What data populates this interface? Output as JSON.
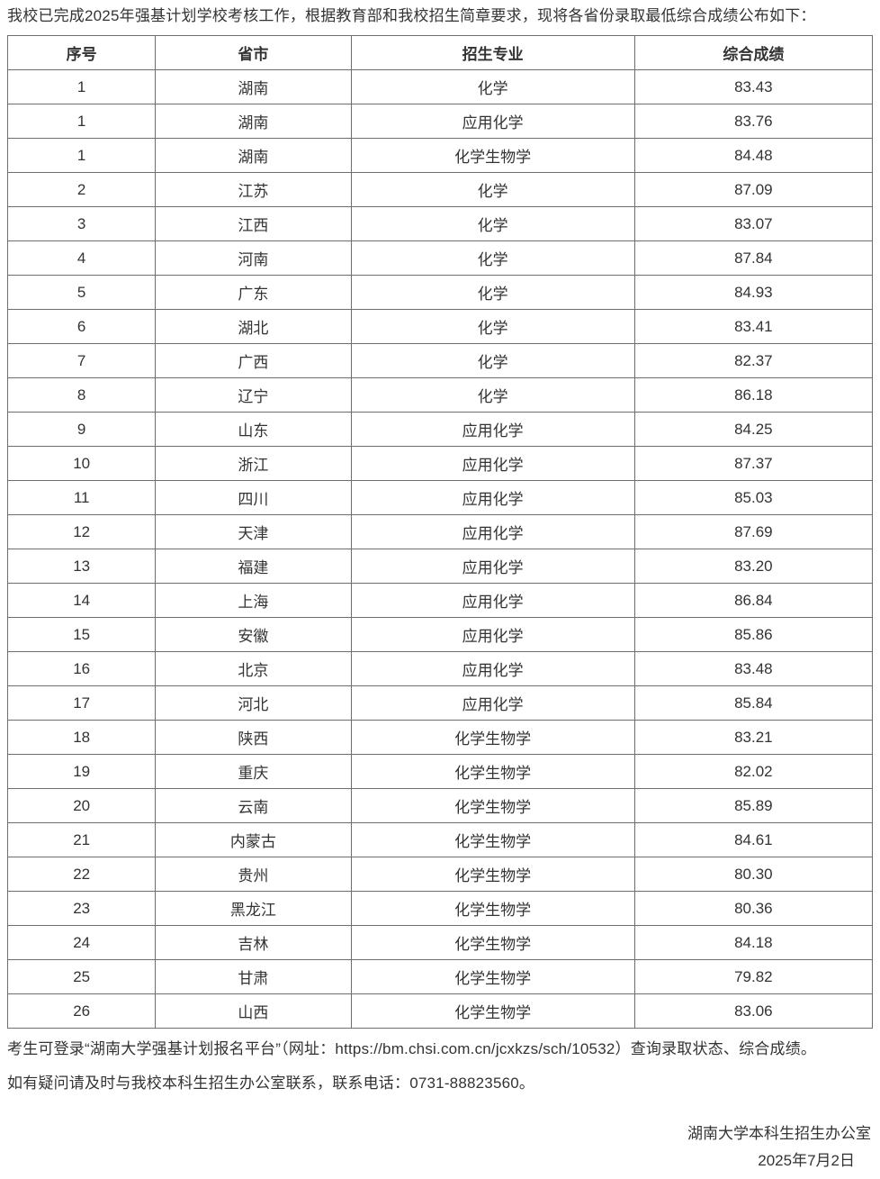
{
  "intro_text": "我校已完成2025年强基计划学校考核工作，根据教育部和我校招生简章要求，现将各省份录取最低综合成绩公布如下：",
  "table": {
    "headers": [
      "序号",
      "省市",
      "招生专业",
      "综合成绩"
    ],
    "field_names": [
      "index",
      "province",
      "major",
      "score"
    ],
    "rows": [
      [
        "1",
        "湖南",
        "化学",
        "83.43"
      ],
      [
        "1",
        "湖南",
        "应用化学",
        "83.76"
      ],
      [
        "1",
        "湖南",
        "化学生物学",
        "84.48"
      ],
      [
        "2",
        "江苏",
        "化学",
        "87.09"
      ],
      [
        "3",
        "江西",
        "化学",
        "83.07"
      ],
      [
        "4",
        "河南",
        "化学",
        "87.84"
      ],
      [
        "5",
        "广东",
        "化学",
        "84.93"
      ],
      [
        "6",
        "湖北",
        "化学",
        "83.41"
      ],
      [
        "7",
        "广西",
        "化学",
        "82.37"
      ],
      [
        "8",
        "辽宁",
        "化学",
        "86.18"
      ],
      [
        "9",
        "山东",
        "应用化学",
        "84.25"
      ],
      [
        "10",
        "浙江",
        "应用化学",
        "87.37"
      ],
      [
        "11",
        "四川",
        "应用化学",
        "85.03"
      ],
      [
        "12",
        "天津",
        "应用化学",
        "87.69"
      ],
      [
        "13",
        "福建",
        "应用化学",
        "83.20"
      ],
      [
        "14",
        "上海",
        "应用化学",
        "86.84"
      ],
      [
        "15",
        "安徽",
        "应用化学",
        "85.86"
      ],
      [
        "16",
        "北京",
        "应用化学",
        "83.48"
      ],
      [
        "17",
        "河北",
        "应用化学",
        "85.84"
      ],
      [
        "18",
        "陕西",
        "化学生物学",
        "83.21"
      ],
      [
        "19",
        "重庆",
        "化学生物学",
        "82.02"
      ],
      [
        "20",
        "云南",
        "化学生物学",
        "85.89"
      ],
      [
        "21",
        "内蒙古",
        "化学生物学",
        "84.61"
      ],
      [
        "22",
        "贵州",
        "化学生物学",
        "80.30"
      ],
      [
        "23",
        "黑龙江",
        "化学生物学",
        "80.36"
      ],
      [
        "24",
        "吉林",
        "化学生物学",
        "84.18"
      ],
      [
        "25",
        "甘肃",
        "化学生物学",
        "79.82"
      ],
      [
        "26",
        "山西",
        "化学生物学",
        "83.06"
      ]
    ]
  },
  "footer": {
    "note1": "考生可登录“湖南大学强基计划报名平台”（网址：https://bm.chsi.com.cn/jcxkzs/sch/10532）查询录取状态、综合成绩。",
    "note2": "如有疑问请及时与我校本科生招生办公室联系，联系电话：0731-88823560。",
    "signature": "湖南大学本科生招生办公室",
    "date": "2025年7月2日"
  },
  "colors": {
    "text": "#333333",
    "table_border": "#6e6e6e",
    "background": "#ffffff"
  }
}
